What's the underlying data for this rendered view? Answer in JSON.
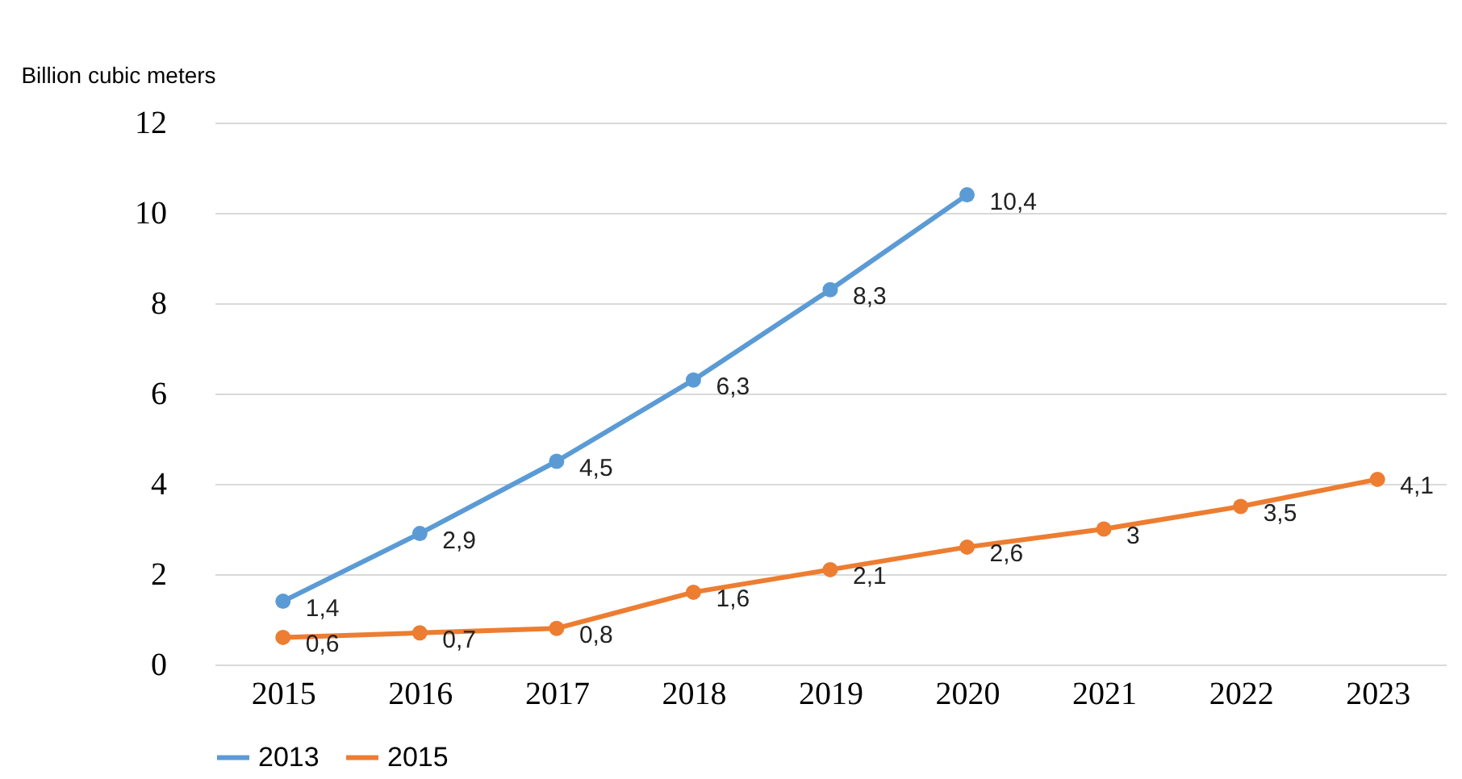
{
  "chart_data": {
    "type": "line",
    "ylabel": "Billion  cubic meters",
    "categories": [
      "2015",
      "2016",
      "2017",
      "2018",
      "2019",
      "2020",
      "2021",
      "2022",
      "2023"
    ],
    "series": [
      {
        "name": "2013",
        "color": "#5b9bd5",
        "values": [
          1.4,
          2.9,
          4.5,
          6.3,
          8.3,
          10.4,
          null,
          null,
          null
        ],
        "value_labels": [
          "1,4",
          "2,9",
          "4,5",
          "6,3",
          "8,3",
          "10,4",
          null,
          null,
          null
        ]
      },
      {
        "name": "2015",
        "color": "#ed7d31",
        "values": [
          0.6,
          0.7,
          0.8,
          1.6,
          2.1,
          2.6,
          3,
          3.5,
          4.1
        ],
        "value_labels": [
          "0,6",
          "0,7",
          "0,8",
          "1,6",
          "2,1",
          "2,6",
          "3",
          "3,5",
          "4,1"
        ]
      }
    ],
    "ylim": [
      0,
      12
    ],
    "yticks": [
      0,
      2,
      4,
      6,
      8,
      10,
      12
    ],
    "grid": "y",
    "legend": "bottom",
    "marker": "circle",
    "line_style": "solid"
  }
}
